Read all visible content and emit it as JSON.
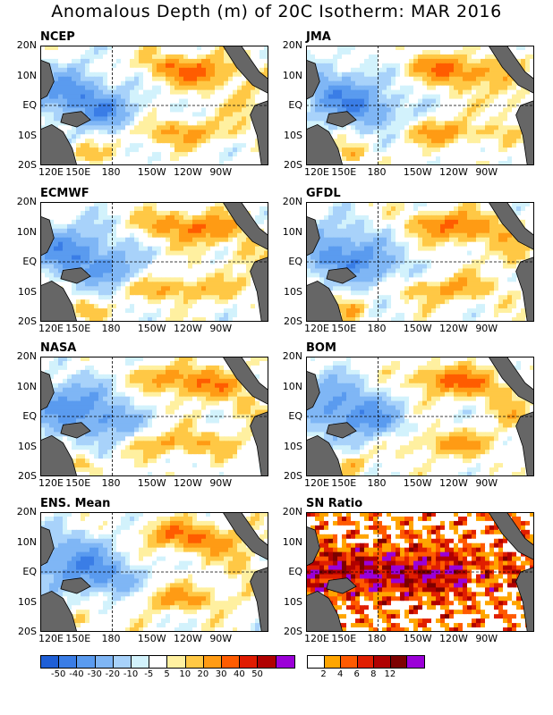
{
  "title": "Anomalous Depth (m) of 20C Isotherm: MAR 2016",
  "lat_labels": [
    "20N",
    "10N",
    "EQ",
    "10S",
    "20S"
  ],
  "lon_labels": [
    "120E",
    "150E",
    "180",
    "150W",
    "120W",
    "90W"
  ],
  "panels": [
    {
      "label": "NCEP"
    },
    {
      "label": "JMA"
    },
    {
      "label": "ECMWF"
    },
    {
      "label": "GFDL"
    },
    {
      "label": "NASA"
    },
    {
      "label": "BOM"
    },
    {
      "label": "ENS. Mean"
    },
    {
      "label": "SN Ratio"
    }
  ],
  "colors": {
    "anomaly_scale": [
      "#1f5fd6",
      "#3a7de6",
      "#5a9bef",
      "#7fb6f5",
      "#a8d2fa",
      "#d2f2fc",
      "#ffffff",
      "#fff0a0",
      "#ffc845",
      "#ff9b14",
      "#ff5c00",
      "#e01b00",
      "#b00000",
      "#7a0000",
      "#9b00d8"
    ],
    "sn_scale": [
      "#ffffff",
      "#ffa500",
      "#ff5a00",
      "#e01e00",
      "#b00000",
      "#7d0000",
      "#9b00d8"
    ],
    "land": "#666666"
  },
  "colorbar_anomaly": {
    "ticks": [
      "-50",
      "-40",
      "-30",
      "-20",
      "-10",
      "-5",
      "5",
      "10",
      "20",
      "30",
      "40",
      "50"
    ]
  },
  "colorbar_sn": {
    "ticks": [
      "2",
      "4",
      "6",
      "8",
      "12"
    ]
  }
}
